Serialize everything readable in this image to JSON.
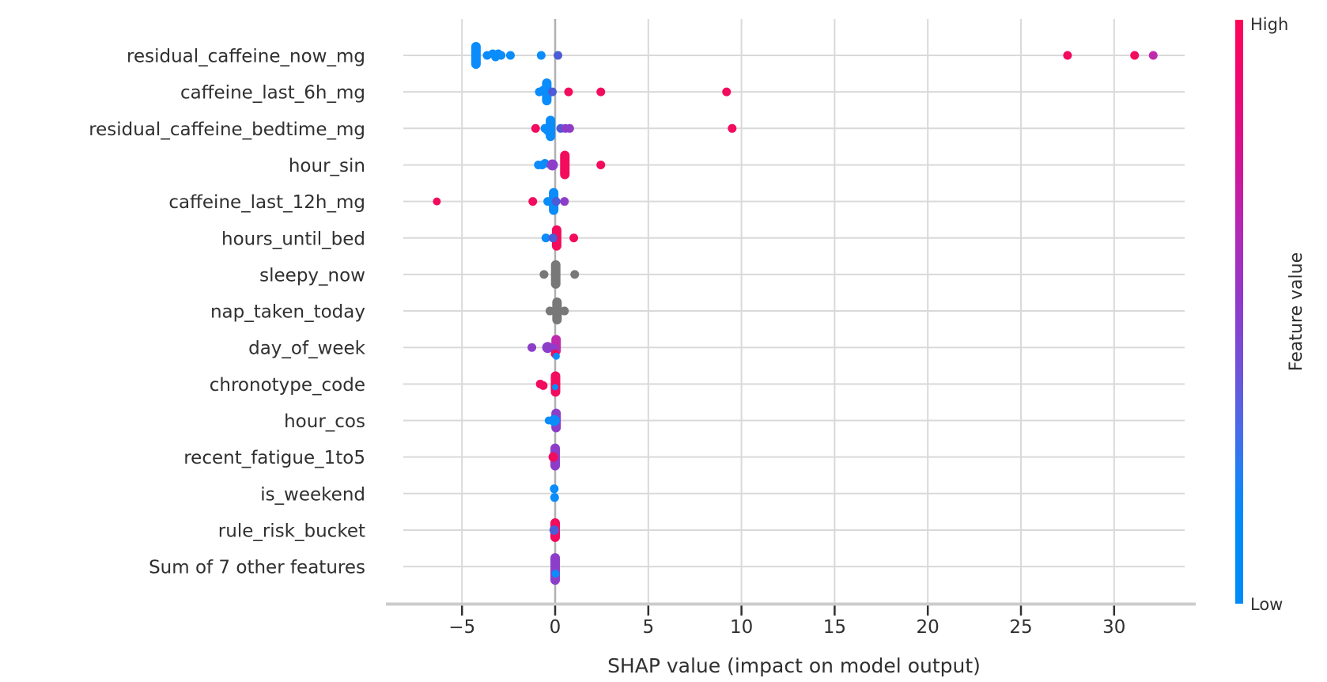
{
  "chart_data": {
    "type": "scatter",
    "variant": "shap-beeswarm-summary",
    "xlabel": "SHAP value (impact on model output)",
    "xlim": [
      -8.2,
      33.9
    ],
    "grid": true,
    "x_ticks": [
      {
        "v": -5,
        "label": "−5"
      },
      {
        "v": 0,
        "label": "0"
      },
      {
        "v": 5,
        "label": "5"
      },
      {
        "v": 10,
        "label": "10"
      },
      {
        "v": 15,
        "label": "15"
      },
      {
        "v": 20,
        "label": "20"
      },
      {
        "v": 25,
        "label": "25"
      },
      {
        "v": 30,
        "label": "30"
      }
    ],
    "palette": {
      "blue": "#0a8cfb",
      "indigo": "#4b5cd6",
      "purple": "#8c3ec9",
      "magenta": "#bf2bad",
      "red": "#f30b5d",
      "gray": "#787878"
    },
    "colorbar": {
      "high": "High",
      "low": "Low",
      "label": "Feature value",
      "high_color": "#ff0458",
      "low_color": "#008bfb",
      "gradient_top_to_bottom": [
        [
          0.0,
          "#ff0458"
        ],
        [
          0.1,
          "#f0076e"
        ],
        [
          0.22,
          "#d9118e"
        ],
        [
          0.35,
          "#b726b4"
        ],
        [
          0.48,
          "#9139cb"
        ],
        [
          0.6,
          "#6f53d8"
        ],
        [
          0.7,
          "#4a6ae8"
        ],
        [
          0.78,
          "#1e80f5"
        ],
        [
          0.86,
          "#008bfb"
        ],
        [
          1.0,
          "#008bfb"
        ]
      ]
    },
    "features": [
      {
        "name": "residual_caffeine_now_mg",
        "clusters": [
          {
            "x": -4.25,
            "h": 17,
            "c": "blue"
          }
        ],
        "points": [
          {
            "x": -3.65,
            "c": "blue"
          },
          {
            "x": -3.35,
            "c": "blue",
            "dy": -2
          },
          {
            "x": -3.2,
            "c": "blue",
            "dy": 2
          },
          {
            "x": -3.05,
            "c": "blue",
            "dy": -2
          },
          {
            "x": -2.9,
            "c": "blue"
          },
          {
            "x": -2.4,
            "c": "blue"
          },
          {
            "x": -0.75,
            "c": "blue"
          },
          {
            "x": 0.15,
            "c": "indigo"
          },
          {
            "x": 27.5,
            "c": "red"
          },
          {
            "x": 31.1,
            "c": "red"
          },
          {
            "x": 32.1,
            "c": "magenta"
          }
        ]
      },
      {
        "name": "caffeine_last_6h_mg",
        "clusters": [
          {
            "x": -0.45,
            "h": 17,
            "c": "blue"
          }
        ],
        "points": [
          {
            "x": -0.85,
            "c": "blue"
          },
          {
            "x": -0.65,
            "c": "blue",
            "dy": -2
          },
          {
            "x": -0.15,
            "c": "indigo"
          },
          {
            "x": 0.72,
            "c": "red"
          },
          {
            "x": 2.45,
            "c": "red"
          },
          {
            "x": 9.2,
            "c": "red"
          }
        ]
      },
      {
        "name": "residual_caffeine_bedtime_mg",
        "clusters": [
          {
            "x": -0.25,
            "h": 16,
            "c": "blue"
          }
        ],
        "points": [
          {
            "x": -1.05,
            "c": "red"
          },
          {
            "x": -0.55,
            "c": "blue"
          },
          {
            "x": -0.4,
            "c": "blue",
            "dy": 3
          },
          {
            "x": 0.3,
            "c": "indigo"
          },
          {
            "x": 0.55,
            "c": "purple"
          },
          {
            "x": 0.78,
            "c": "purple"
          },
          {
            "x": 9.5,
            "c": "red"
          }
        ]
      },
      {
        "name": "hour_sin",
        "clusters": [
          {
            "x": 0.52,
            "h": 18,
            "c": "red"
          }
        ],
        "points": [
          {
            "x": -0.9,
            "c": "blue"
          },
          {
            "x": -0.7,
            "c": "blue"
          },
          {
            "x": -0.55,
            "c": "blue",
            "dy": -2
          },
          {
            "x": -0.15,
            "c": "purple",
            "r": 7
          },
          {
            "x": 2.45,
            "c": "red"
          }
        ]
      },
      {
        "name": "caffeine_last_12h_mg",
        "clusters": [
          {
            "x": -0.08,
            "h": 17,
            "c": "blue"
          }
        ],
        "points": [
          {
            "x": -6.35,
            "c": "red",
            "r": 5
          },
          {
            "x": -1.2,
            "c": "red"
          },
          {
            "x": -0.4,
            "c": "blue"
          },
          {
            "x": 0.05,
            "c": "indigo"
          },
          {
            "x": 0.5,
            "c": "purple"
          }
        ]
      },
      {
        "name": "hours_until_bed",
        "clusters": [
          {
            "x": 0.08,
            "h": 16,
            "c": "red"
          }
        ],
        "points": [
          {
            "x": -0.5,
            "c": "blue"
          },
          {
            "x": -0.12,
            "c": "indigo"
          },
          {
            "x": 1.0,
            "c": "red"
          }
        ]
      },
      {
        "name": "sleepy_now",
        "clusters": [
          {
            "x": 0.03,
            "h": 18,
            "c": "gray"
          }
        ],
        "points": [
          {
            "x": -0.6,
            "c": "gray"
          },
          {
            "x": 1.05,
            "c": "gray"
          }
        ]
      },
      {
        "name": "nap_taken_today",
        "clusters": [
          {
            "x": 0.1,
            "h": 17,
            "c": "gray"
          }
        ],
        "points": [
          {
            "x": -0.28,
            "c": "gray"
          },
          {
            "x": 0.5,
            "c": "gray"
          }
        ]
      },
      {
        "name": "day_of_week",
        "clusters": [
          {
            "x": 0.05,
            "h": 13,
            "c": "magenta",
            "dy": -3
          }
        ],
        "points": [
          {
            "x": -1.25,
            "c": "purple"
          },
          {
            "x": -0.4,
            "c": "purple",
            "r": 7
          },
          {
            "x": -0.08,
            "c": "purple",
            "dy": 1
          },
          {
            "x": 0.0,
            "c": "red",
            "dy": 8
          },
          {
            "x": 0.06,
            "c": "blue",
            "dy": 11,
            "r": 4.5
          }
        ]
      },
      {
        "name": "chronotype_code",
        "clusters": [
          {
            "x": 0.02,
            "h": 16,
            "c": "red"
          }
        ],
        "points": [
          {
            "x": -0.8,
            "c": "red"
          },
          {
            "x": -0.64,
            "c": "red",
            "dy": 2
          },
          {
            "x": 0.0,
            "c": "blue",
            "dy": 4,
            "r": 4
          }
        ]
      },
      {
        "name": "hour_cos",
        "clusters": [
          {
            "x": 0.05,
            "h": 15,
            "c": "purple"
          }
        ],
        "points": [
          {
            "x": -0.35,
            "c": "blue",
            "r": 5
          },
          {
            "x": -0.05,
            "c": "blue",
            "r": 7
          }
        ]
      },
      {
        "name": "recent_fatigue_1to5",
        "clusters": [
          {
            "x": 0.0,
            "h": 17,
            "c": "purple"
          }
        ],
        "points": [
          {
            "x": -0.1,
            "c": "red",
            "r": 6
          }
        ]
      },
      {
        "name": "is_weekend",
        "clusters": [],
        "points": [
          {
            "x": -0.05,
            "c": "blue",
            "dy": -6
          },
          {
            "x": -0.03,
            "c": "blue",
            "dy": 5
          }
        ]
      },
      {
        "name": "rule_risk_bucket",
        "clusters": [
          {
            "x": 0.0,
            "h": 15,
            "c": "red"
          }
        ],
        "points": [
          {
            "x": -0.05,
            "c": "indigo",
            "r": 6
          }
        ]
      },
      {
        "name": "Sum of 7 other features",
        "clusters": [
          {
            "x": 0.0,
            "h": 20,
            "c": "purple",
            "dy": 3
          }
        ],
        "points": [
          {
            "x": 0.02,
            "c": "blue",
            "dy": 9,
            "r": 5
          }
        ]
      }
    ],
    "style": {
      "grid_color": "#d9d9d9",
      "zero_line_color": "#b0b0b0",
      "axis_line_color": "#cccccc",
      "tick_color": "#303030",
      "text_color": "#303030"
    }
  }
}
